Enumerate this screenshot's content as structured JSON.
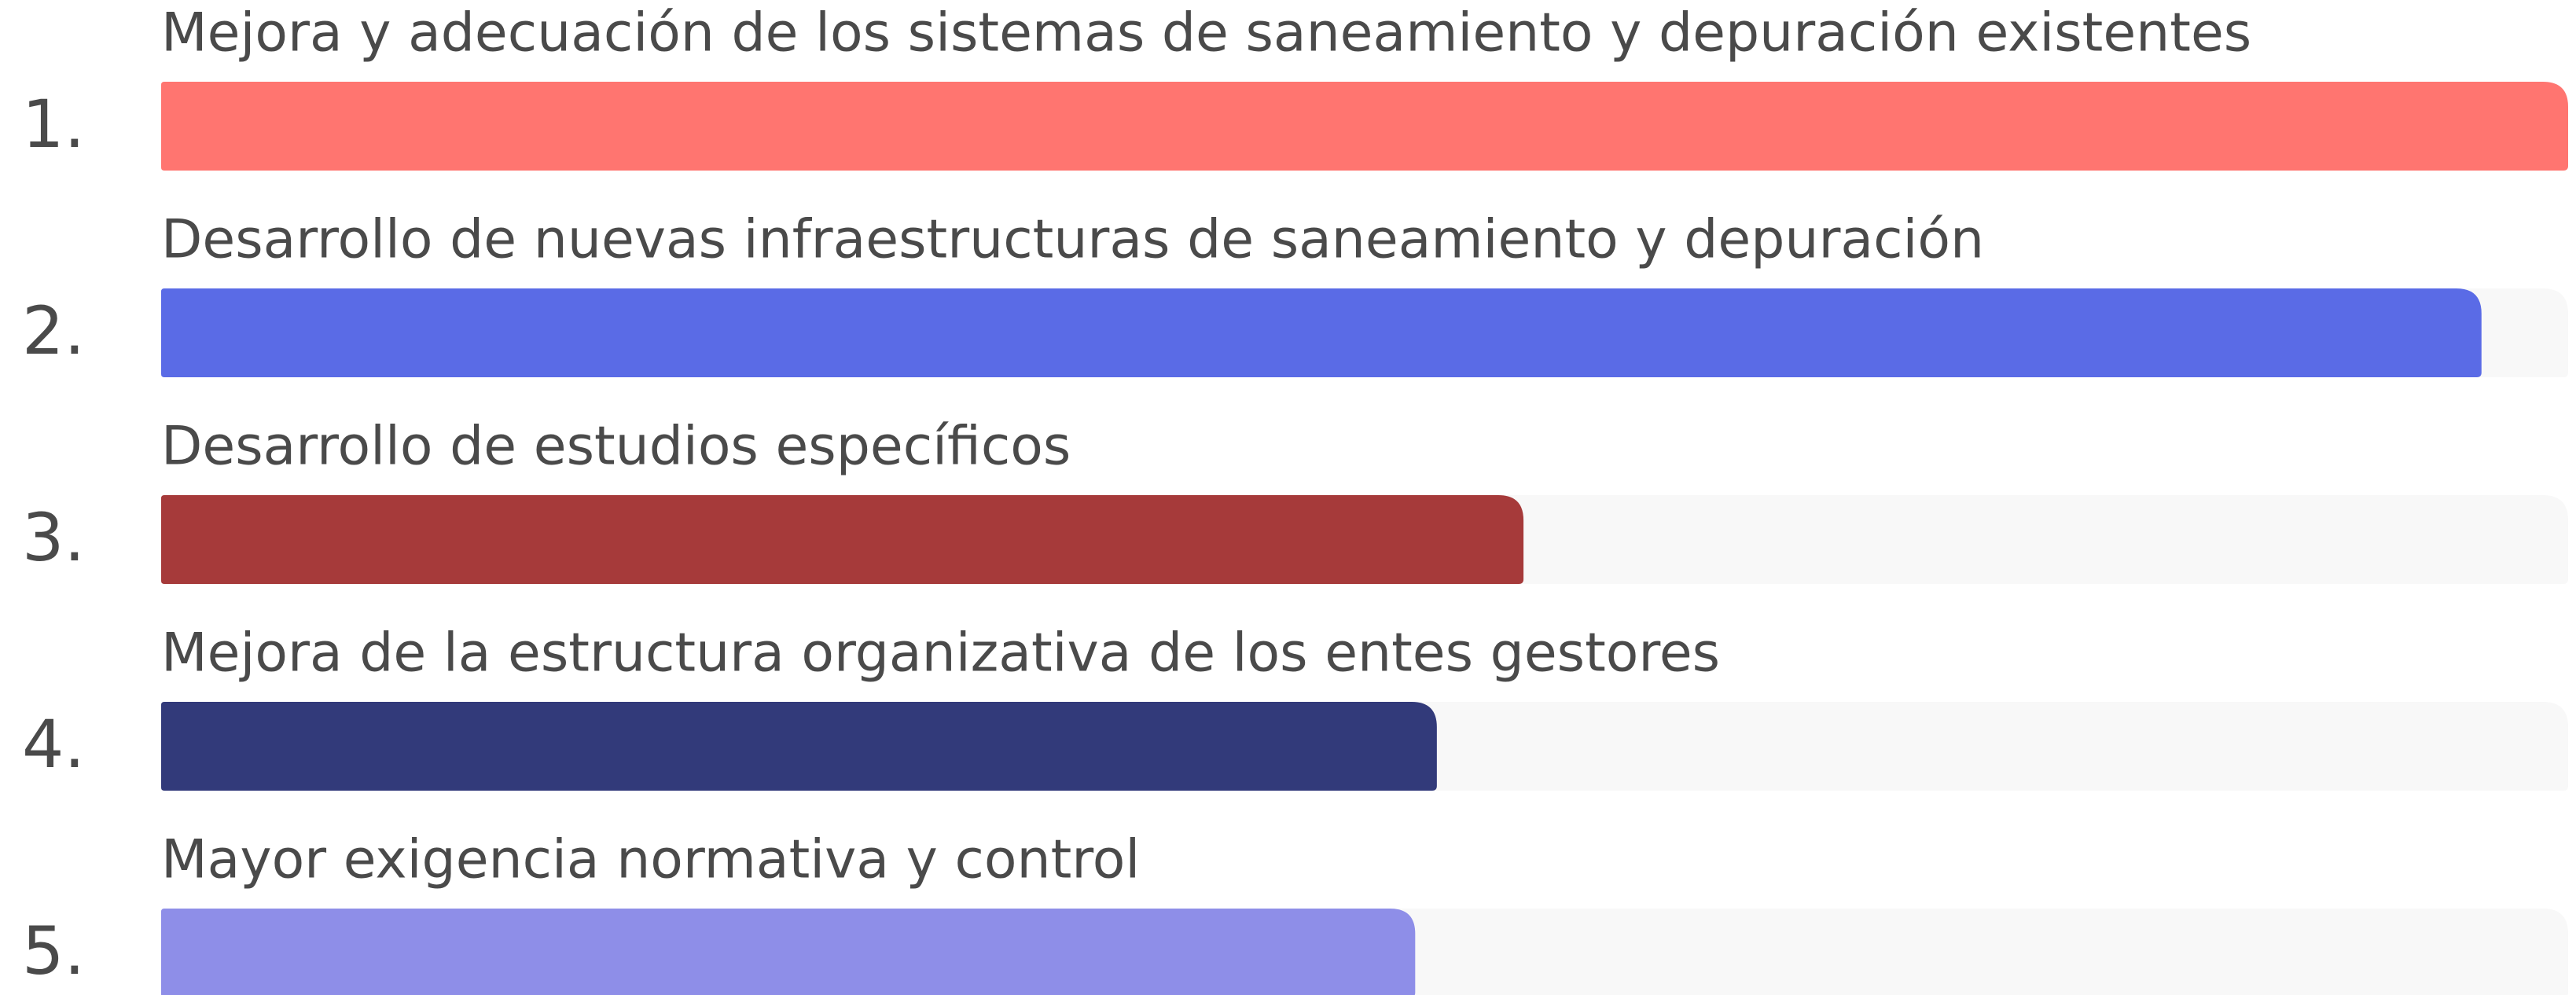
{
  "chart_data": {
    "type": "bar",
    "ranks": [
      "1.",
      "2.",
      "3.",
      "4.",
      "5."
    ],
    "categories": [
      "Mejora y adecuación de los sistemas de saneamiento y depuración existentes",
      "Desarrollo de nuevas infraestructuras de saneamiento y depuración",
      "Desarrollo de estudios específicos",
      "Mejora de la estructura organizativa de los entes gestores",
      "Mayor exigencia normativa y control"
    ],
    "values": [
      100,
      96.4,
      56.6,
      53,
      52.1
    ],
    "colors": [
      "#ff7570",
      "#5a6be6",
      "#a63a3a",
      "#323a7a",
      "#8e8ee8"
    ],
    "track_color": "#f8f8f8",
    "xlim": [
      0,
      100
    ]
  }
}
